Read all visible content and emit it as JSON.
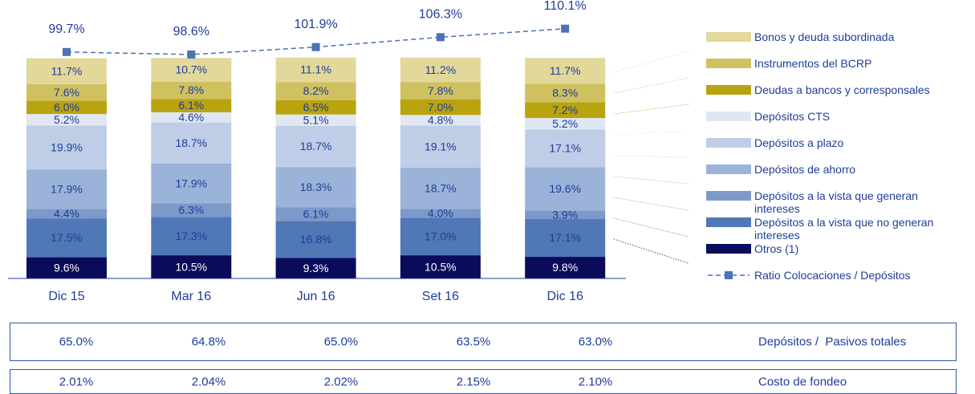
{
  "chart_data": {
    "type": "bar",
    "stacked": true,
    "categories": [
      "Dic 15",
      "Mar 16",
      "Jun 16",
      "Set 16",
      "Dic 16"
    ],
    "ylim": [
      0,
      100
    ],
    "y2lim": [
      90,
      115
    ],
    "series": [
      {
        "name": "Otros (1)",
        "color": "#0b0b5c",
        "values": [
          9.6,
          10.5,
          9.3,
          10.5,
          9.8
        ],
        "value_labels": [
          "9.6%",
          "10.5%",
          "9.3%",
          "10.5%",
          "9.8%"
        ]
      },
      {
        "name": "Depósitos a la vista que no generan intereses",
        "color": "#5077b6",
        "values": [
          17.5,
          17.3,
          16.8,
          17.0,
          17.1
        ],
        "value_labels": [
          "17.5%",
          "17.3%",
          "16.8%",
          "17.0%",
          "17.1%"
        ]
      },
      {
        "name": "Depósitos a la vista que generan intereses",
        "color": "#7d99c9",
        "values": [
          4.4,
          6.3,
          6.1,
          4.0,
          3.9
        ],
        "value_labels": [
          "4.4%",
          "6.3%",
          "6.1%",
          "4.0%",
          "3.9%"
        ]
      },
      {
        "name": "Depósitos de ahorro",
        "color": "#9bb2d9",
        "values": [
          17.9,
          17.9,
          18.3,
          18.7,
          19.6
        ],
        "value_labels": [
          "17.9%",
          "17.9%",
          "18.3%",
          "18.7%",
          "19.6%"
        ]
      },
      {
        "name": "Depósitos a plazo",
        "color": "#bfcde7",
        "values": [
          19.9,
          18.7,
          18.7,
          19.1,
          17.1
        ],
        "value_labels": [
          "19.9%",
          "18.7%",
          "18.7%",
          "19.1%",
          "17.1%"
        ]
      },
      {
        "name": "Depósitos CTS",
        "color": "#e0e7f2",
        "values": [
          5.2,
          4.6,
          5.1,
          4.8,
          5.2
        ],
        "value_labels": [
          "5.2%",
          "4.6%",
          "5.1%",
          "4.8%",
          "5.2%"
        ]
      },
      {
        "name": "Deudas a bancos y corresponsales",
        "color": "#b9a30f",
        "values": [
          6.0,
          6.1,
          6.5,
          7.0,
          7.2
        ],
        "value_labels": [
          "6.0%",
          "6.1%",
          "6.5%",
          "7.0%",
          "7.2%"
        ]
      },
      {
        "name": "Instrumentos del BCRP",
        "color": "#cfc15f",
        "values": [
          7.6,
          7.8,
          8.2,
          7.8,
          8.3
        ],
        "value_labels": [
          "7.6%",
          "7.8%",
          "8.2%",
          "7.8%",
          "8.3%"
        ]
      },
      {
        "name": "Bonos y deuda subordinada",
        "color": "#e1d89a",
        "values": [
          11.7,
          10.7,
          11.1,
          11.2,
          11.7
        ],
        "value_labels": [
          "11.7%",
          "10.7%",
          "11.1%",
          "11.2%",
          "11.7%"
        ]
      },
      {
        "name": "Ratio Colocaciones / Depósitos",
        "color": "#4a72b5",
        "axis": "y2",
        "values": [
          99.7,
          98.6,
          101.9,
          106.3,
          110.1
        ],
        "value_labels": [
          "99.7%",
          "98.6%",
          "101.9%",
          "106.3%",
          "110.1%"
        ]
      }
    ]
  },
  "table": {
    "rows": [
      {
        "label": "Depósitos /  Pasivos totales",
        "cells": [
          "65.0%",
          "64.8%",
          "65.0%",
          "63.5%",
          "63.0%"
        ]
      },
      {
        "label": "Costo de fondeo",
        "cells": [
          "2.01%",
          "2.04%",
          "2.02%",
          "2.15%",
          "2.10%"
        ]
      }
    ]
  }
}
